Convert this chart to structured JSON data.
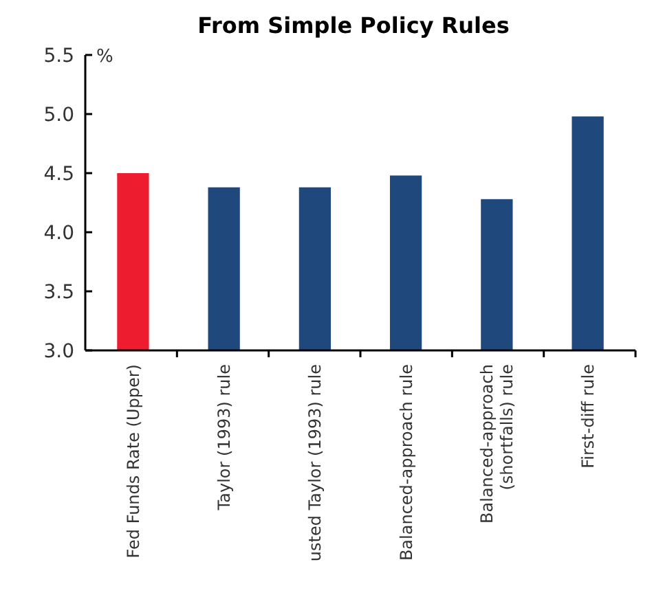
{
  "chart_data": {
    "type": "bar",
    "title": "From Simple Policy Rules",
    "ylabel": "%",
    "categories": [
      "Fed Funds Rate (Upper)",
      "Taylor (1993) rule",
      "usted Taylor (1993) rule",
      "Balanced-approach rule",
      "Balanced-approach\n(shortfalls) rule",
      "First-diff rule"
    ],
    "values": [
      4.5,
      4.38,
      4.38,
      4.48,
      4.28,
      4.98
    ],
    "colors": [
      "#ed1c2e",
      "#1f497d",
      "#1f497d",
      "#1f497d",
      "#1f497d",
      "#1f497d"
    ],
    "ylim": [
      3,
      5.5
    ],
    "yticks": [
      {
        "value": 3,
        "label": "3.0"
      },
      {
        "value": 3.5,
        "label": "3.5"
      },
      {
        "value": 4,
        "label": "4.0"
      },
      {
        "value": 4.5,
        "label": "4.5"
      },
      {
        "value": 5,
        "label": "5.0"
      },
      {
        "value": 5.5,
        "label": "5.5"
      }
    ],
    "grid": false
  }
}
